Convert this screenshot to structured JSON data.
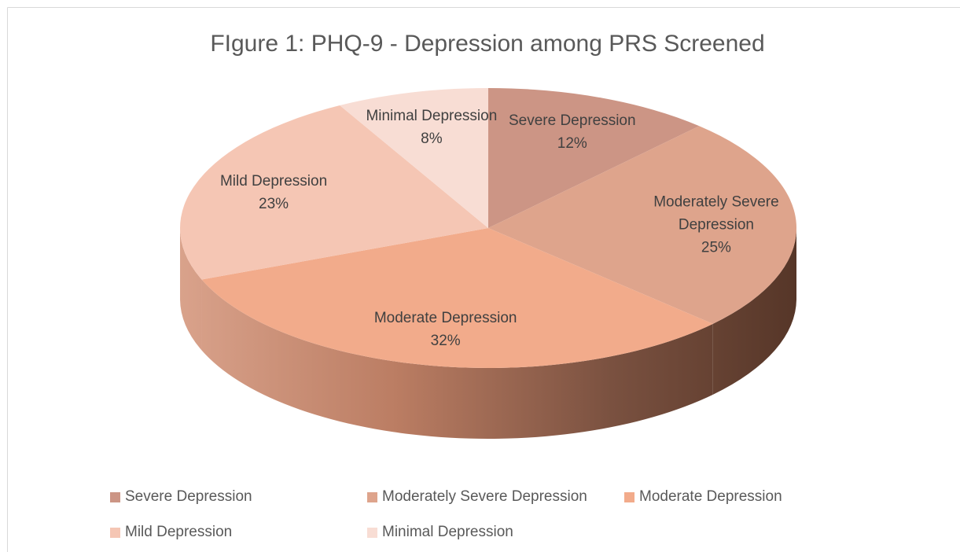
{
  "chart_data": {
    "type": "pie",
    "title": "FIgure 1: PHQ-9 - Depression among PRS Screened",
    "categories": [
      "Severe Depression",
      "Moderately Severe Depression",
      "Moderate Depression",
      "Mild Depression",
      "Minimal Depression"
    ],
    "values": [
      12,
      25,
      32,
      23,
      8
    ],
    "value_labels": [
      "12%",
      "25%",
      "32%",
      "23%",
      "8%"
    ],
    "colors": [
      "#cc9585",
      "#dea48c",
      "#f2ab8b",
      "#f5c6b4",
      "#f8ddd4"
    ],
    "legend": "bottom"
  }
}
